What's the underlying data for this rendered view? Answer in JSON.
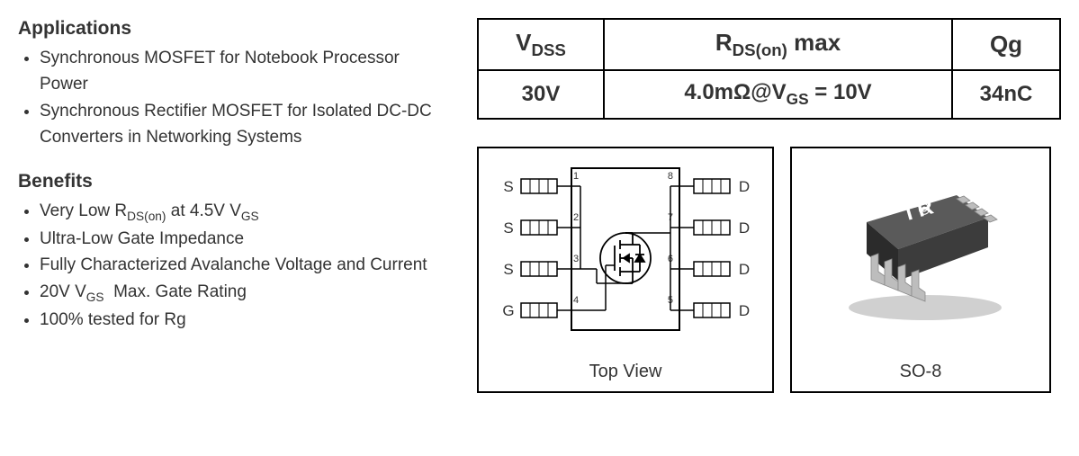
{
  "applications": {
    "heading": "Applications",
    "items": [
      "Synchronous MOSFET for Notebook Processor Power",
      "Synchronous Rectifier MOSFET for Isolated DC-DC Converters in Networking Systems"
    ]
  },
  "benefits": {
    "heading": "Benefits",
    "items_html": [
      "Very Low R<sub>DS(on)</sub> at 4.5V V<sub>GS</sub>",
      "Ultra-Low Gate Impedance",
      "Fully Characterized Avalanche Voltage and Current",
      "20V V<sub>GS</sub>&nbsp; Max. Gate Rating",
      "100% tested for Rg"
    ]
  },
  "spec_table": {
    "headers_html": [
      "V<sub>DSS</sub>",
      "R<sub>DS(on)</sub> max",
      "Qg"
    ],
    "row_html": [
      "30V",
      "4.0mΩ@V<sub>GS</sub> = 10V",
      "34nC"
    ],
    "col_widths": [
      "140px",
      "auto",
      "120px"
    ],
    "border_color": "#000000",
    "header_fontsize": 26,
    "cell_fontsize": 24
  },
  "pinout": {
    "caption": "Top View",
    "left_pins": [
      {
        "num": "1",
        "label": "S"
      },
      {
        "num": "2",
        "label": "S"
      },
      {
        "num": "3",
        "label": "S"
      },
      {
        "num": "4",
        "label": "G"
      }
    ],
    "right_pins": [
      {
        "num": "8",
        "label": "D"
      },
      {
        "num": "7",
        "label": "D"
      },
      {
        "num": "6",
        "label": "D"
      },
      {
        "num": "5",
        "label": "D"
      }
    ],
    "body_stroke": "#000000",
    "body_fill": "none",
    "pin_fill": "#ffffff"
  },
  "package": {
    "caption": "SO-8",
    "logo_text": "I R",
    "body_color_top": "#5a5a5a",
    "body_color_side": "#2b2b2b",
    "pin_color": "#bdbdbd",
    "logo_color": "#ffffff"
  },
  "colors": {
    "text": "#333333",
    "background": "#ffffff",
    "border": "#000000"
  }
}
